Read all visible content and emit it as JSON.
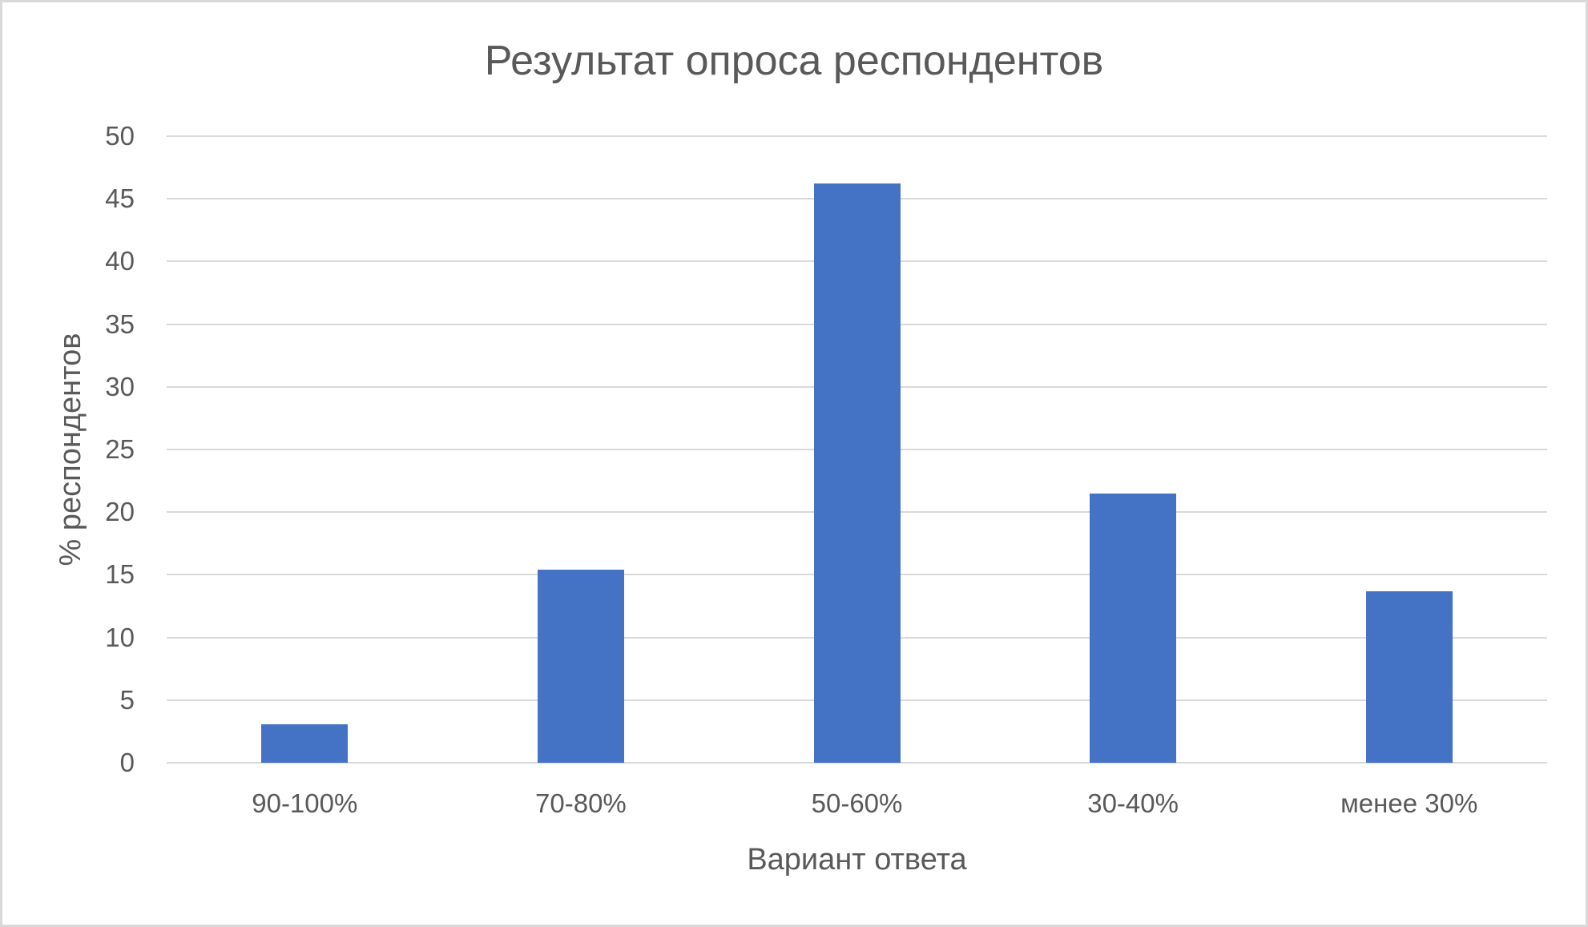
{
  "chart_data": {
    "type": "bar",
    "title": "Результат опроса респондентов",
    "xlabel": "Вариант ответа",
    "ylabel": "% респондентов",
    "categories": [
      "90-100%",
      "70-80%",
      "50-60%",
      "30-40%",
      "менее 30%"
    ],
    "values": [
      3.1,
      15.4,
      46.2,
      21.5,
      13.7
    ],
    "ylim": [
      0,
      50
    ],
    "yticks": [
      0,
      5,
      10,
      15,
      20,
      25,
      30,
      35,
      40,
      45,
      50
    ],
    "grid": true,
    "legend": "none",
    "colors": {
      "bar": "#4472c4",
      "gridline": "#d9d9d9",
      "text": "#595959",
      "border": "#d9d9d9"
    }
  }
}
